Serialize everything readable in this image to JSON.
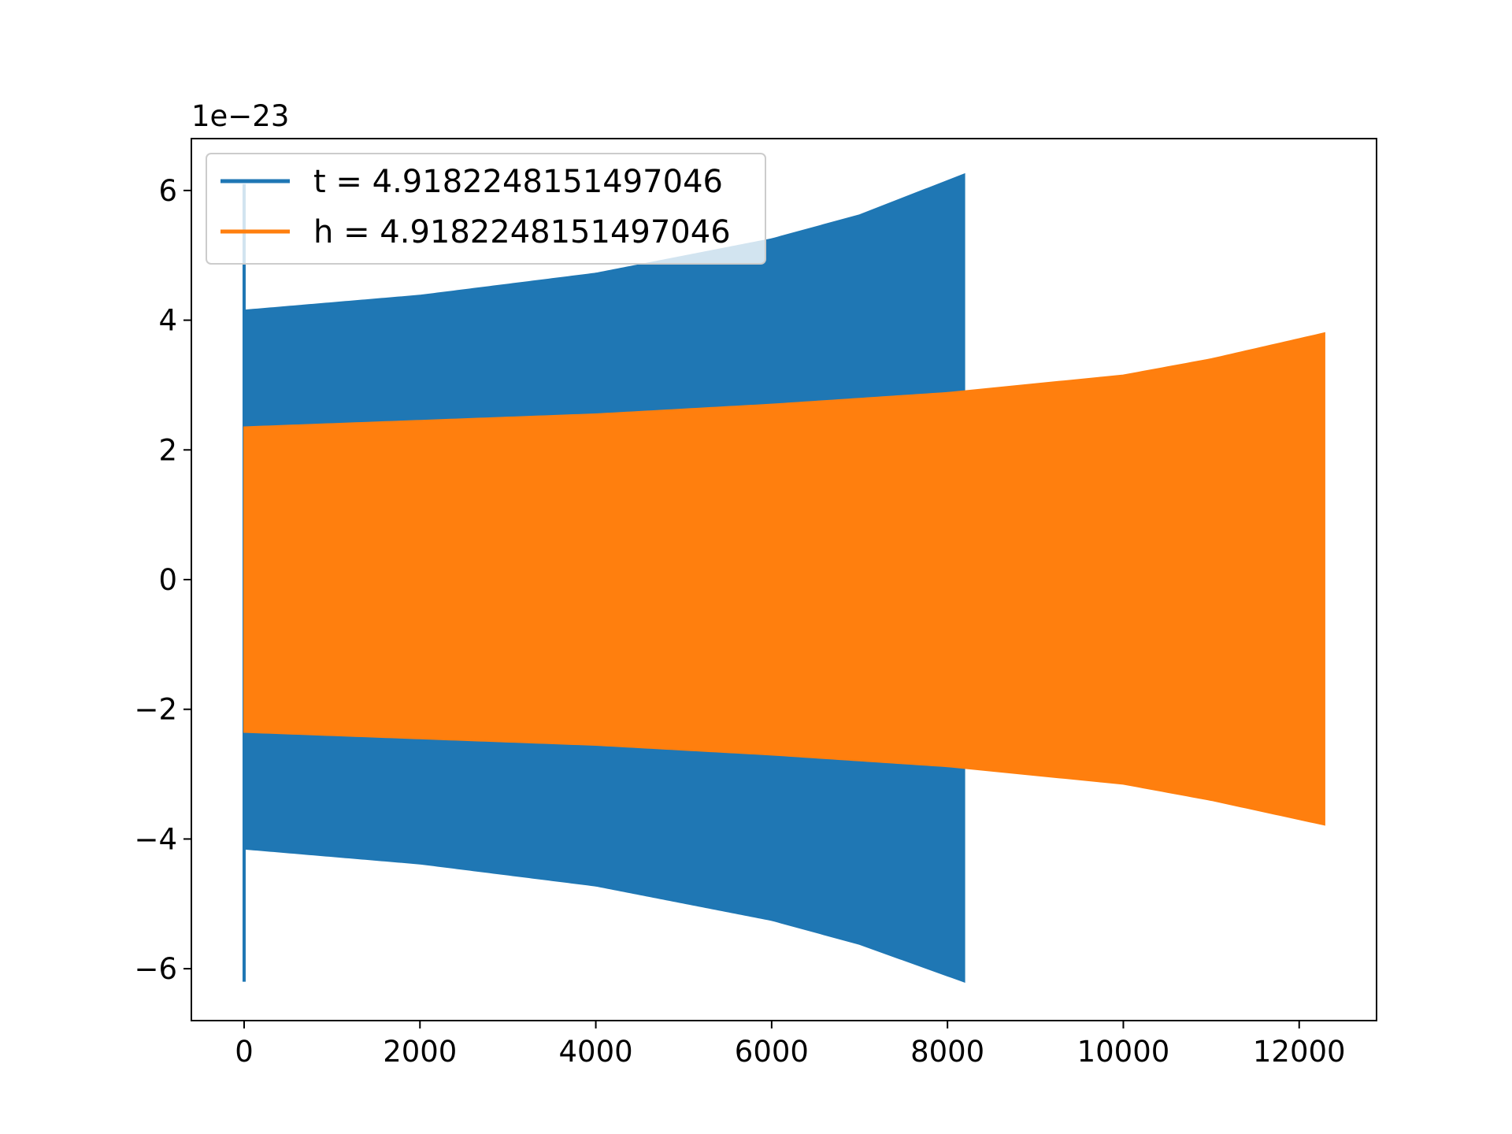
{
  "chart_data": {
    "type": "area",
    "title": "",
    "xlabel": "",
    "ylabel": "",
    "y_offset_label": "1e−23",
    "xlim": [
      -600,
      12880
    ],
    "ylim": [
      -6.8,
      6.8
    ],
    "x_ticks": [
      0,
      2000,
      4000,
      6000,
      8000,
      10000,
      12000
    ],
    "y_ticks": [
      -6,
      -4,
      -2,
      0,
      2,
      4,
      6
    ],
    "x_tick_labels": [
      "0",
      "2000",
      "4000",
      "6000",
      "8000",
      "10000",
      "12000"
    ],
    "y_tick_labels": [
      "−6",
      "−4",
      "−2",
      "0",
      "2",
      "4",
      "6"
    ],
    "grid": false,
    "legend_placement": "upper-left",
    "series": [
      {
        "name": "t = 4.9182248151497046",
        "color": "#1f77b4",
        "x_range": [
          0,
          8192
        ],
        "envelope_upper": [
          [
            0,
            4.15
          ],
          [
            2000,
            4.38
          ],
          [
            4000,
            4.72
          ],
          [
            6000,
            5.25
          ],
          [
            7000,
            5.62
          ],
          [
            8192,
            6.25
          ]
        ],
        "envelope_lower": [
          [
            0,
            -4.15
          ],
          [
            2000,
            -4.38
          ],
          [
            4000,
            -4.72
          ],
          [
            6000,
            -5.25
          ],
          [
            7000,
            -5.62
          ],
          [
            8192,
            -6.2
          ]
        ],
        "initial_spike": [
          6.1,
          -6.2
        ]
      },
      {
        "name": "h = 4.9182248151497046",
        "color": "#ff7f0e",
        "x_range": [
          0,
          12288
        ],
        "envelope_upper": [
          [
            0,
            2.35
          ],
          [
            2000,
            2.45
          ],
          [
            4000,
            2.55
          ],
          [
            6000,
            2.7
          ],
          [
            8000,
            2.88
          ],
          [
            10000,
            3.15
          ],
          [
            11000,
            3.4
          ],
          [
            12288,
            3.8
          ]
        ],
        "envelope_lower": [
          [
            0,
            -2.35
          ],
          [
            2000,
            -2.45
          ],
          [
            4000,
            -2.55
          ],
          [
            6000,
            -2.7
          ],
          [
            8000,
            -2.88
          ],
          [
            10000,
            -3.15
          ],
          [
            11000,
            -3.4
          ],
          [
            12288,
            -3.78
          ]
        ]
      }
    ]
  }
}
